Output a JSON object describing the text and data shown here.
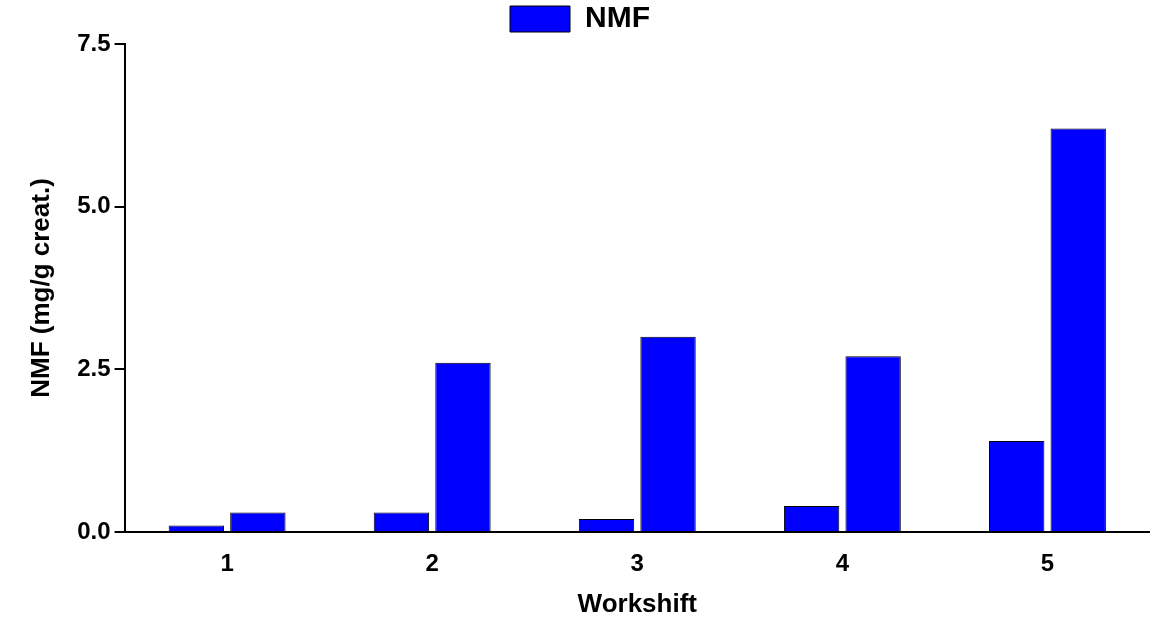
{
  "chart_data": {
    "type": "bar",
    "xlabel": "Workshift",
    "ylabel": "NMF (mg/g creat.)",
    "categories": [
      "1",
      "2",
      "3",
      "4",
      "5"
    ],
    "series": [
      {
        "name": "NMF",
        "color": "#0000ff",
        "values": [
          0.1,
          0.3,
          0.2,
          0.4,
          1.4
        ]
      },
      {
        "color": "#0000ff",
        "values": [
          0.3,
          2.6,
          3.0,
          2.7,
          6.2
        ]
      }
    ],
    "ylim": [
      0,
      7.5
    ],
    "yticks": [
      {
        "value": 0,
        "label": "0.0"
      },
      2.5,
      {
        "value": 5,
        "label": "5.0"
      },
      7.5
    ],
    "legend": "top"
  }
}
